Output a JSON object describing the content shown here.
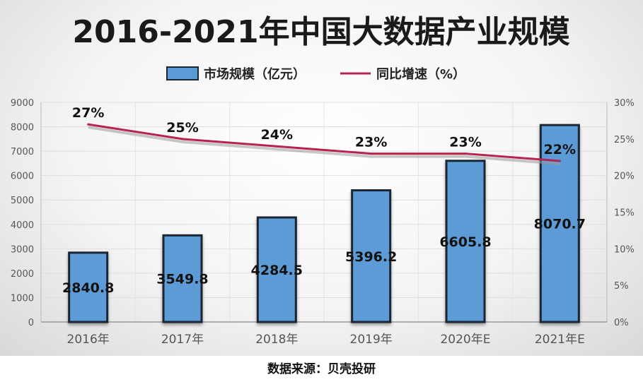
{
  "chart_data": {
    "type": "bar",
    "title": "2016-2021年中国大数据产业规模",
    "categories": [
      "2016年",
      "2017年",
      "2018年",
      "2019年",
      "2020年E",
      "2021年E"
    ],
    "series": [
      {
        "name": "市场规模（亿元）",
        "type": "bar",
        "axis": "left",
        "values": [
          2840.8,
          3549.8,
          4284.5,
          5396.2,
          6605.8,
          8070.7
        ],
        "labels": [
          "2840.8",
          "3549.8",
          "4284.5",
          "5396.2",
          "6605.8",
          "8070.7"
        ]
      },
      {
        "name": "同比增速（%）",
        "type": "line",
        "axis": "right",
        "values": [
          27,
          25,
          24,
          23,
          23,
          22
        ],
        "labels": [
          "27%",
          "25%",
          "24%",
          "23%",
          "23%",
          "22%"
        ]
      }
    ],
    "left_axis": {
      "ylim": [
        0,
        9000
      ],
      "ticks": [
        "0",
        "1000",
        "2000",
        "3000",
        "4000",
        "5000",
        "6000",
        "7000",
        "8000",
        "9000"
      ]
    },
    "right_axis": {
      "ylim": [
        0,
        30
      ],
      "ticks": [
        "0%",
        "5%",
        "10%",
        "15%",
        "20%",
        "25%",
        "30%"
      ]
    },
    "legend": "top-center",
    "grid": true,
    "colors": {
      "bar": "#5b9bd5",
      "bar_border": "#1a2733",
      "line": "#b5234e",
      "title": "#1a1a1a"
    }
  },
  "source": "数据来源：贝壳投研"
}
